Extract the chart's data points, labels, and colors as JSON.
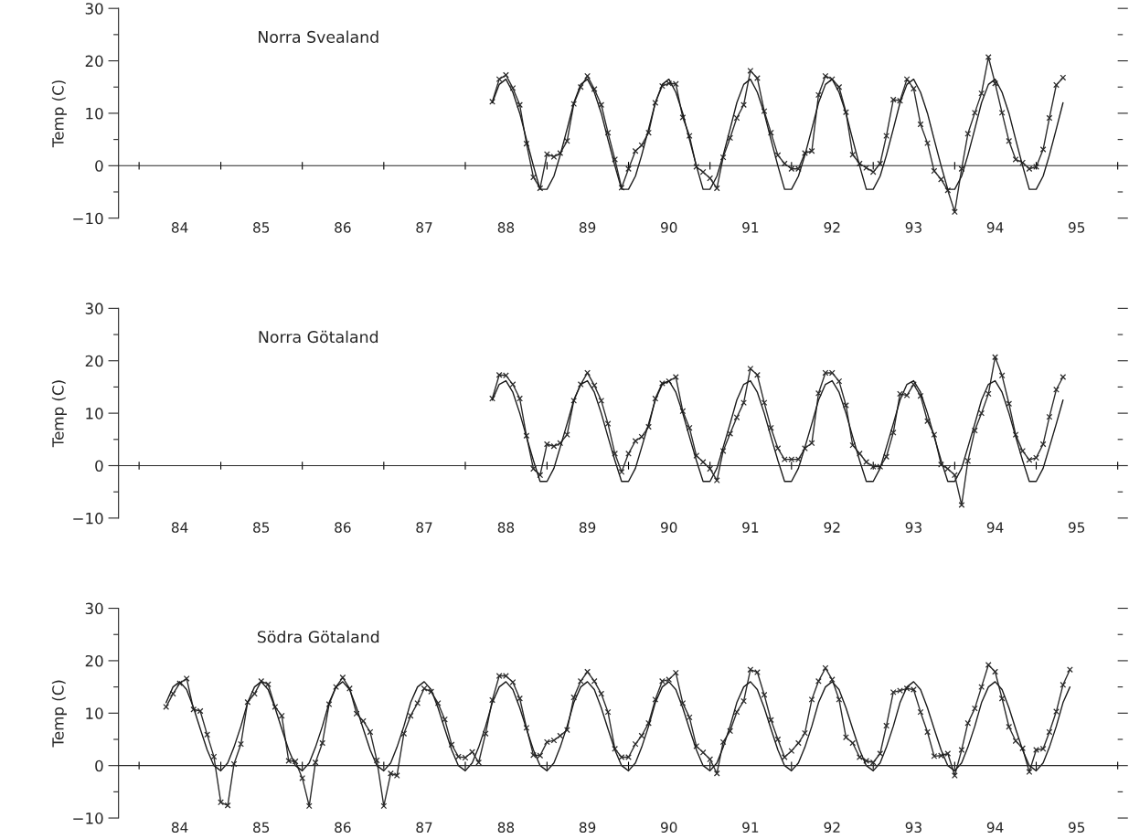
{
  "chart_data": [
    {
      "type": "line",
      "title": "Norra Svealand",
      "ylabel": "Temp (C)",
      "xlim": [
        "1983-10-01",
        "1996-01-01"
      ],
      "ylim": [
        -10,
        30
      ],
      "xticks": [
        {
          "value": "1984-07-01",
          "label": "84"
        },
        {
          "value": "1985-07-01",
          "label": "85"
        },
        {
          "value": "1986-07-01",
          "label": "86"
        },
        {
          "value": "1987-07-01",
          "label": "87"
        },
        {
          "value": "1988-07-01",
          "label": "88"
        },
        {
          "value": "1989-07-01",
          "label": "89"
        },
        {
          "value": "1990-07-01",
          "label": "90"
        },
        {
          "value": "1991-07-01",
          "label": "91"
        },
        {
          "value": "1992-07-01",
          "label": "92"
        },
        {
          "value": "1993-07-01",
          "label": "93"
        },
        {
          "value": "1994-07-01",
          "label": "94"
        },
        {
          "value": "1995-07-01",
          "label": "95"
        },
        {
          "value": "1984-01-01",
          "label": null
        },
        {
          "value": "1985-01-01",
          "label": null
        },
        {
          "value": "1986-01-01",
          "label": null
        },
        {
          "value": "1987-01-01",
          "label": null
        },
        {
          "value": "1988-01-01",
          "label": null
        },
        {
          "value": "1989-01-01",
          "label": null
        },
        {
          "value": "1990-01-01",
          "label": null
        },
        {
          "value": "1991-01-01",
          "label": null
        },
        {
          "value": "1992-01-01",
          "label": null
        },
        {
          "value": "1993-01-01",
          "label": null
        },
        {
          "value": "1994-01-01",
          "label": null
        },
        {
          "value": "1995-01-01",
          "label": null
        },
        {
          "value": "1996-01-01",
          "label": null
        }
      ],
      "yticks": [
        {
          "value": -10,
          "label": "−10"
        },
        0,
        10,
        20,
        30,
        {
          "value": -5,
          "label": null
        },
        {
          "value": 5,
          "label": null
        },
        {
          "value": 15,
          "label": null
        },
        {
          "value": 25,
          "label": null
        }
      ],
      "x": [
        "1988-05",
        "1988-06",
        "1988-07",
        "1988-08",
        "1988-09",
        "1988-10",
        "1988-11",
        "1988-12",
        "1989-01",
        "1989-02",
        "1989-03",
        "1989-04",
        "1989-05",
        "1989-06",
        "1989-07",
        "1989-08",
        "1989-09",
        "1989-10",
        "1989-11",
        "1989-12",
        "1990-01",
        "1990-02",
        "1990-03",
        "1990-04",
        "1990-05",
        "1990-06",
        "1990-07",
        "1990-08",
        "1990-09",
        "1990-10",
        "1990-11",
        "1990-12",
        "1991-01",
        "1991-02",
        "1991-03",
        "1991-04",
        "1991-05",
        "1991-06",
        "1991-07",
        "1991-08",
        "1991-09",
        "1991-10",
        "1991-11",
        "1991-12",
        "1992-01",
        "1992-02",
        "1992-03",
        "1992-04",
        "1992-05",
        "1992-06",
        "1992-07",
        "1992-08",
        "1992-09",
        "1992-10",
        "1992-11",
        "1992-12",
        "1993-01",
        "1993-02",
        "1993-03",
        "1993-04",
        "1993-05",
        "1993-06",
        "1993-07",
        "1993-08",
        "1993-09",
        "1993-10",
        "1993-11",
        "1993-12",
        "1994-01",
        "1994-02",
        "1994-03",
        "1994-04",
        "1994-05",
        "1994-06",
        "1994-07",
        "1994-08",
        "1994-09",
        "1994-10",
        "1994-11",
        "1994-12",
        "1995-01",
        "1995-02",
        "1995-03",
        "1995-04",
        "1995-05"
      ],
      "series": [
        {
          "color": "#2b2b2b",
          "marker": "cross",
          "values": [
            12.2,
            16.5,
            17.3,
            14.8,
            11.6,
            4.2,
            -2.2,
            -4.3,
            2.2,
            1.7,
            2.4,
            4.7,
            11.8,
            15,
            17.1,
            14.6,
            11.6,
            6.3,
            1.2,
            -4.2,
            -0.6,
            2.8,
            3.9,
            6.3,
            12,
            15.2,
            15.7,
            15.6,
            9.2,
            5.7,
            -0.2,
            -1.2,
            -2.4,
            -4.3,
            1.6,
            5.3,
            9.1,
            11.6,
            18.1,
            16.7,
            10.4,
            6.3,
            2,
            0.4,
            -0.6,
            -0.6,
            2.4,
            2.8,
            13.5,
            17.1,
            16.5,
            15,
            10.2,
            2.1,
            0.4,
            -0.4,
            -1.2,
            0.4,
            5.7,
            12.6,
            12.4,
            16.5,
            14.7,
            7.9,
            4.3,
            -1,
            -2.6,
            -4.7,
            -8.8,
            -0.6,
            6.1,
            10.1,
            13.8,
            20.7,
            15.7,
            10.1,
            4.7,
            1.2,
            0.6,
            -0.6,
            -0.2,
            3.1,
            9.1,
            15.4,
            16.8
          ]
        },
        {
          "color": "#1a1a1a",
          "values": [
            12,
            15.5,
            16.5,
            14,
            10,
            5,
            0,
            -4.5,
            -4.5,
            -2,
            2,
            7,
            12,
            15.5,
            16.5,
            14,
            10,
            5,
            0,
            -4.5,
            -4.5,
            -2,
            2,
            7,
            12,
            15.5,
            16.5,
            14,
            10,
            5,
            0,
            -4.5,
            -4.5,
            -2,
            2,
            7,
            12,
            15.5,
            16.5,
            14,
            10,
            5,
            0,
            -4.5,
            -4.5,
            -2,
            2,
            7,
            12,
            15.5,
            16.5,
            14,
            10,
            5,
            0,
            -4.5,
            -4.5,
            -2,
            2,
            7,
            12,
            15.5,
            16.5,
            14,
            10,
            5,
            0,
            -4.5,
            -4.5,
            -2,
            2,
            7,
            12,
            15.5,
            16.5,
            14,
            10,
            5,
            0,
            -4.5,
            -4.5,
            -2,
            2,
            7,
            12
          ]
        }
      ]
    },
    {
      "type": "line",
      "title": "Norra Götaland",
      "ylabel": "Temp (C)",
      "xlim": [
        "1983-10-01",
        "1996-01-01"
      ],
      "ylim": [
        -10,
        30
      ],
      "xticks": [
        {
          "value": "1984-07-01",
          "label": "84"
        },
        {
          "value": "1985-07-01",
          "label": "85"
        },
        {
          "value": "1986-07-01",
          "label": "86"
        },
        {
          "value": "1987-07-01",
          "label": "87"
        },
        {
          "value": "1988-07-01",
          "label": "88"
        },
        {
          "value": "1989-07-01",
          "label": "89"
        },
        {
          "value": "1990-07-01",
          "label": "90"
        },
        {
          "value": "1991-07-01",
          "label": "91"
        },
        {
          "value": "1992-07-01",
          "label": "92"
        },
        {
          "value": "1993-07-01",
          "label": "93"
        },
        {
          "value": "1994-07-01",
          "label": "94"
        },
        {
          "value": "1995-07-01",
          "label": "95"
        },
        {
          "value": "1984-01-01",
          "label": null
        },
        {
          "value": "1985-01-01",
          "label": null
        },
        {
          "value": "1986-01-01",
          "label": null
        },
        {
          "value": "1987-01-01",
          "label": null
        },
        {
          "value": "1988-01-01",
          "label": null
        },
        {
          "value": "1989-01-01",
          "label": null
        },
        {
          "value": "1990-01-01",
          "label": null
        },
        {
          "value": "1991-01-01",
          "label": null
        },
        {
          "value": "1992-01-01",
          "label": null
        },
        {
          "value": "1993-01-01",
          "label": null
        },
        {
          "value": "1994-01-01",
          "label": null
        },
        {
          "value": "1995-01-01",
          "label": null
        },
        {
          "value": "1996-01-01",
          "label": null
        }
      ],
      "yticks": [
        {
          "value": -10,
          "label": "−10"
        },
        0,
        10,
        20,
        30,
        {
          "value": -5,
          "label": null
        },
        {
          "value": 5,
          "label": null
        },
        {
          "value": 15,
          "label": null
        },
        {
          "value": 25,
          "label": null
        }
      ],
      "x": [
        "1988-05",
        "1988-06",
        "1988-07",
        "1988-08",
        "1988-09",
        "1988-10",
        "1988-11",
        "1988-12",
        "1989-01",
        "1989-02",
        "1989-03",
        "1989-04",
        "1989-05",
        "1989-06",
        "1989-07",
        "1989-08",
        "1989-09",
        "1989-10",
        "1989-11",
        "1989-12",
        "1990-01",
        "1990-02",
        "1990-03",
        "1990-04",
        "1990-05",
        "1990-06",
        "1990-07",
        "1990-08",
        "1990-09",
        "1990-10",
        "1990-11",
        "1990-12",
        "1991-01",
        "1991-02",
        "1991-03",
        "1991-04",
        "1991-05",
        "1991-06",
        "1991-07",
        "1991-08",
        "1991-09",
        "1991-10",
        "1991-11",
        "1991-12",
        "1992-01",
        "1992-02",
        "1992-03",
        "1992-04",
        "1992-05",
        "1992-06",
        "1992-07",
        "1992-08",
        "1992-09",
        "1992-10",
        "1992-11",
        "1992-12",
        "1993-01",
        "1993-02",
        "1993-03",
        "1993-04",
        "1993-05",
        "1993-06",
        "1993-07",
        "1993-08",
        "1993-09",
        "1993-10",
        "1993-11",
        "1993-12",
        "1994-01",
        "1994-02",
        "1994-03",
        "1994-04",
        "1994-05",
        "1994-06",
        "1994-07",
        "1994-08",
        "1994-09",
        "1994-10",
        "1994-11",
        "1994-12",
        "1995-01",
        "1995-02",
        "1995-03",
        "1995-04",
        "1995-05"
      ],
      "series": [
        {
          "color": "#2b2b2b",
          "marker": "cross",
          "values": [
            12.8,
            17.3,
            17.2,
            15.5,
            12.8,
            5.7,
            -0.6,
            -1.8,
            4.1,
            3.7,
            4.3,
            5.9,
            12.4,
            15.5,
            17.7,
            15.3,
            12.4,
            8,
            2.3,
            -1.2,
            2.3,
            4.7,
            5.5,
            7.4,
            12.8,
            15.7,
            16.1,
            16.9,
            10.4,
            7.2,
            1.9,
            0.7,
            -0.6,
            -2.8,
            2.8,
            6.1,
            9.2,
            12,
            18.5,
            17.3,
            12,
            7.2,
            3.3,
            1.2,
            1.2,
            1.2,
            3.3,
            4.3,
            13.8,
            17.7,
            17.7,
            16.1,
            11.5,
            3.9,
            2.3,
            0.7,
            -0.2,
            -0.2,
            1.7,
            6.3,
            13.7,
            13.4,
            15.5,
            13.3,
            8.5,
            5.9,
            0.2,
            -0.6,
            -1.8,
            -7.5,
            0.9,
            6.7,
            10,
            13.7,
            20.7,
            17.2,
            11.8,
            5.9,
            2.8,
            1.1,
            1.5,
            4.1,
            9.3,
            14.5,
            16.9
          ]
        },
        {
          "color": "#1a1a1a",
          "values": [
            12.5,
            15.5,
            16.2,
            14,
            10,
            5.5,
            1,
            -3,
            -3,
            -0.5,
            3.5,
            8,
            12.5,
            15.5,
            16.2,
            14,
            10,
            5.5,
            1,
            -3,
            -3,
            -0.5,
            3.5,
            8,
            12.5,
            15.5,
            16.2,
            14,
            10,
            5.5,
            1,
            -3,
            -3,
            -0.5,
            3.5,
            8,
            12.5,
            15.5,
            16.2,
            14,
            10,
            5.5,
            1,
            -3,
            -3,
            -0.5,
            3.5,
            8,
            12.5,
            15.5,
            16.2,
            14,
            10,
            5.5,
            1,
            -3,
            -3,
            -0.5,
            3.5,
            8,
            12.5,
            15.5,
            16.2,
            14,
            10,
            5.5,
            1,
            -3,
            -3,
            -0.5,
            3.5,
            8,
            12.5,
            15.5,
            16.2,
            14,
            10,
            5.5,
            1,
            -3,
            -3,
            -0.5,
            3.5,
            8,
            12.5
          ]
        }
      ]
    },
    {
      "type": "line",
      "title": "Södra Götaland",
      "ylabel": "Temp (C)",
      "xlim": [
        "1983-10-01",
        "1996-01-01"
      ],
      "ylim": [
        -10,
        30
      ],
      "xticks": [
        {
          "value": "1984-07-01",
          "label": "84"
        },
        {
          "value": "1985-07-01",
          "label": "85"
        },
        {
          "value": "1986-07-01",
          "label": "86"
        },
        {
          "value": "1987-07-01",
          "label": "87"
        },
        {
          "value": "1988-07-01",
          "label": "88"
        },
        {
          "value": "1989-07-01",
          "label": "89"
        },
        {
          "value": "1990-07-01",
          "label": "90"
        },
        {
          "value": "1991-07-01",
          "label": "91"
        },
        {
          "value": "1992-07-01",
          "label": "92"
        },
        {
          "value": "1993-07-01",
          "label": "93"
        },
        {
          "value": "1994-07-01",
          "label": "94"
        },
        {
          "value": "1995-07-01",
          "label": "95"
        },
        {
          "value": "1984-01-01",
          "label": null
        },
        {
          "value": "1985-01-01",
          "label": null
        },
        {
          "value": "1986-01-01",
          "label": null
        },
        {
          "value": "1987-01-01",
          "label": null
        },
        {
          "value": "1988-01-01",
          "label": null
        },
        {
          "value": "1989-01-01",
          "label": null
        },
        {
          "value": "1990-01-01",
          "label": null
        },
        {
          "value": "1991-01-01",
          "label": null
        },
        {
          "value": "1992-01-01",
          "label": null
        },
        {
          "value": "1993-01-01",
          "label": null
        },
        {
          "value": "1994-01-01",
          "label": null
        },
        {
          "value": "1995-01-01",
          "label": null
        },
        {
          "value": "1996-01-01",
          "label": null
        }
      ],
      "yticks": [
        {
          "value": -10,
          "label": "−10"
        },
        0,
        10,
        20,
        30,
        {
          "value": -5,
          "label": null
        },
        {
          "value": 5,
          "label": null
        },
        {
          "value": 15,
          "label": null
        },
        {
          "value": 25,
          "label": null
        }
      ],
      "x": [
        "1984-05",
        "1984-06",
        "1984-07",
        "1984-08",
        "1984-09",
        "1984-10",
        "1984-11",
        "1984-12",
        "1985-01",
        "1985-02",
        "1985-03",
        "1985-04",
        "1985-05",
        "1985-06",
        "1985-07",
        "1985-08",
        "1985-09",
        "1985-10",
        "1985-11",
        "1985-12",
        "1986-01",
        "1986-02",
        "1986-03",
        "1986-04",
        "1986-05",
        "1986-06",
        "1986-07",
        "1986-08",
        "1986-09",
        "1986-10",
        "1986-11",
        "1986-12",
        "1987-01",
        "1987-02",
        "1987-03",
        "1987-04",
        "1987-05",
        "1987-06",
        "1987-07",
        "1987-08",
        "1987-09",
        "1987-10",
        "1987-11",
        "1987-12",
        "1988-01",
        "1988-02",
        "1988-03",
        "1988-04",
        "1988-05",
        "1988-06",
        "1988-07",
        "1988-08",
        "1988-09",
        "1988-10",
        "1988-11",
        "1988-12",
        "1989-01",
        "1989-02",
        "1989-03",
        "1989-04",
        "1989-05",
        "1989-06",
        "1989-07",
        "1989-08",
        "1989-09",
        "1989-10",
        "1989-11",
        "1989-12",
        "1990-01",
        "1990-02",
        "1990-03",
        "1990-04",
        "1990-05",
        "1990-06",
        "1990-07",
        "1990-08",
        "1990-09",
        "1990-10",
        "1990-11",
        "1990-12",
        "1991-01",
        "1991-02",
        "1991-03",
        "1991-04",
        "1991-05",
        "1991-06",
        "1991-07",
        "1991-08",
        "1991-09",
        "1991-10",
        "1991-11",
        "1991-12",
        "1992-01",
        "1992-02",
        "1992-03",
        "1992-04",
        "1992-05",
        "1992-06",
        "1992-07",
        "1992-08",
        "1992-09",
        "1992-10",
        "1992-11",
        "1992-12",
        "1993-01",
        "1993-02",
        "1993-03",
        "1993-04",
        "1993-05",
        "1993-06",
        "1993-07",
        "1993-08",
        "1993-09",
        "1993-10",
        "1993-11",
        "1993-12",
        "1994-01",
        "1994-02",
        "1994-03",
        "1994-04",
        "1994-05",
        "1994-06",
        "1994-07",
        "1994-08",
        "1994-09",
        "1994-10",
        "1994-11",
        "1994-12",
        "1995-01",
        "1995-02",
        "1995-03",
        "1995-04",
        "1995-05",
        "1995-06"
      ],
      "series": [
        {
          "color": "#2b2b2b",
          "marker": "cross",
          "values": [
            11.2,
            13.7,
            15.7,
            16.6,
            10.7,
            10.4,
            5.9,
            1.7,
            -7,
            -7.6,
            0.3,
            4.1,
            12.1,
            13.7,
            16.1,
            15.5,
            11.2,
            9.5,
            0.9,
            0.8,
            -2.4,
            -7.7,
            0.6,
            4.3,
            11.7,
            15,
            16.8,
            14.7,
            9.9,
            8.5,
            6.4,
            1,
            -7.7,
            -1.5,
            -1.9,
            6.1,
            9.5,
            11.9,
            14.7,
            14.1,
            11.9,
            8.8,
            4,
            1.7,
            1.5,
            2.6,
            0.6,
            6.1,
            12.5,
            17.1,
            17.1,
            15.9,
            12.8,
            7.2,
            2,
            1.9,
            4.5,
            4.8,
            5.7,
            6.8,
            13,
            16.1,
            17.9,
            16.1,
            13.7,
            10.2,
            3.2,
            1.6,
            1.6,
            4.1,
            5.7,
            8.1,
            12.6,
            16.1,
            16.4,
            17.7,
            11.9,
            9.2,
            3.7,
            2.5,
            1.2,
            -1.5,
            4.5,
            6.6,
            10.2,
            12.3,
            18.3,
            17.8,
            13.5,
            8.7,
            5,
            1.6,
            2.8,
            4.3,
            6.2,
            12.6,
            16.1,
            18.6,
            16.4,
            12.6,
            5.4,
            4.3,
            1.6,
            0.9,
            0.6,
            2.3,
            7.6,
            14,
            14.3,
            14.7,
            14.5,
            10.2,
            6.4,
            1.8,
            1.9,
            2.3,
            -1.9,
            3,
            8.1,
            10.9,
            15,
            19.2,
            17.9,
            12.8,
            7.4,
            4.7,
            3.3,
            -1.2,
            3,
            3.2,
            6.4,
            10.3,
            15.4,
            18.3
          ]
        },
        {
          "color": "#1a1a1a",
          "values": [
            12,
            15,
            16,
            14.5,
            11,
            7,
            3,
            0,
            -1,
            0.5,
            3.5,
            7.5,
            12,
            15,
            16,
            14.5,
            11,
            7,
            3,
            0,
            -1,
            0.5,
            3.5,
            7.5,
            12,
            15,
            16,
            14.5,
            11,
            7,
            3,
            0,
            -1,
            0.5,
            3.5,
            7.5,
            12,
            15,
            16,
            14.5,
            11,
            7,
            3,
            0,
            -1,
            0.5,
            3.5,
            7.5,
            12,
            15,
            16,
            14.5,
            11,
            7,
            3,
            0,
            -1,
            0.5,
            3.5,
            7.5,
            12,
            15,
            16,
            14.5,
            11,
            7,
            3,
            0,
            -1,
            0.5,
            3.5,
            7.5,
            12,
            15,
            16,
            14.5,
            11,
            7,
            3,
            0,
            -1,
            0.5,
            3.5,
            7.5,
            12,
            15,
            16,
            14.5,
            11,
            7,
            3,
            0,
            -1,
            0.5,
            3.5,
            7.5,
            12,
            15,
            16,
            14.5,
            11,
            7,
            3,
            0,
            -1,
            0.5,
            3.5,
            7.5,
            12,
            15,
            16,
            14.5,
            11,
            7,
            3,
            0,
            -1,
            0.5,
            3.5,
            7.5,
            12,
            15,
            16,
            14.5,
            11,
            7,
            3,
            0,
            -1,
            0.5,
            3.5,
            7.5,
            12,
            15
          ]
        }
      ]
    }
  ]
}
